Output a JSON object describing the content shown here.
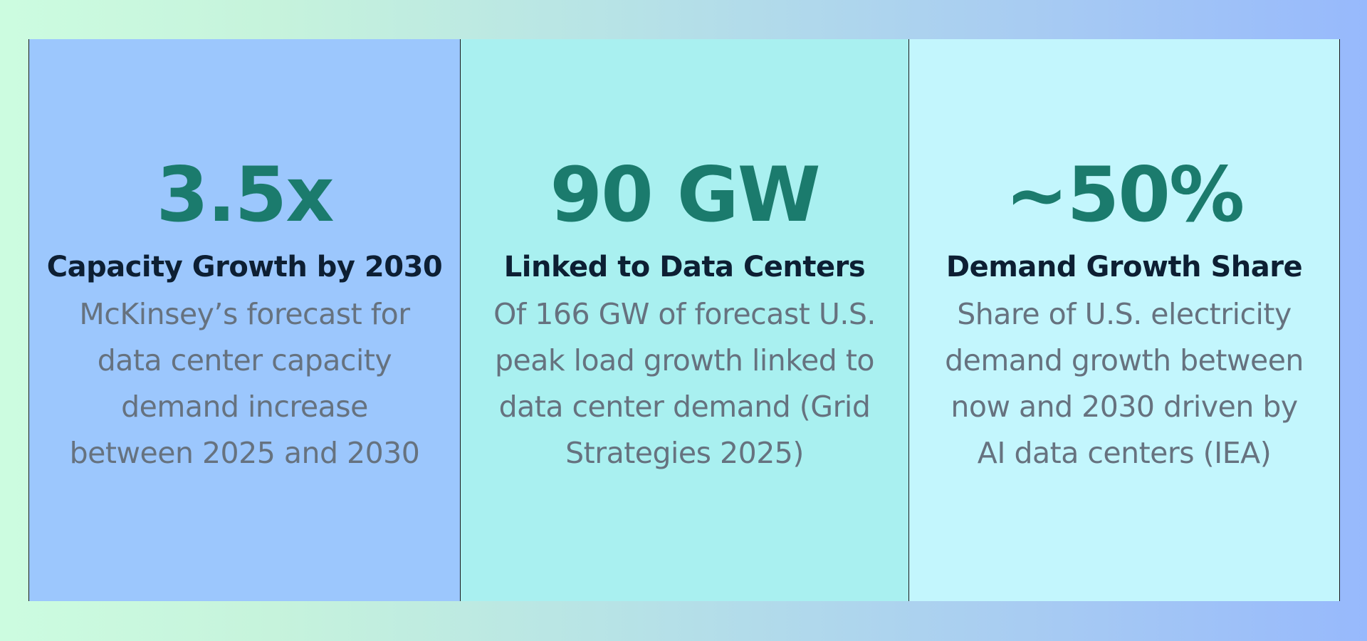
{
  "cards": [
    {
      "stat": "3.5x",
      "heading": "Capacity Growth by 2030",
      "lines": [
        "McKinsey’s forecast for",
        "data center capacity",
        "demand increase",
        "between 2025 and 2030"
      ],
      "background": "#9cc7fd"
    },
    {
      "stat": "90 GW",
      "heading": "Linked to Data Centers",
      "lines": [
        "Of 166 GW of forecast U.S.",
        "peak load growth linked to",
        "data center demand (Grid",
        "Strategies 2025)"
      ],
      "background": "#a9f0f0"
    },
    {
      "stat": "~50%",
      "heading": "Demand Growth Share",
      "lines": [
        "Share of U.S. electricity",
        "demand growth between",
        "now and 2030 driven by",
        "AI data centers (IEA)"
      ],
      "background": "#c3f6fd"
    }
  ],
  "colors": {
    "stat": "#1b7b6d",
    "heading": "#0d1f33",
    "description": "#66727f"
  }
}
